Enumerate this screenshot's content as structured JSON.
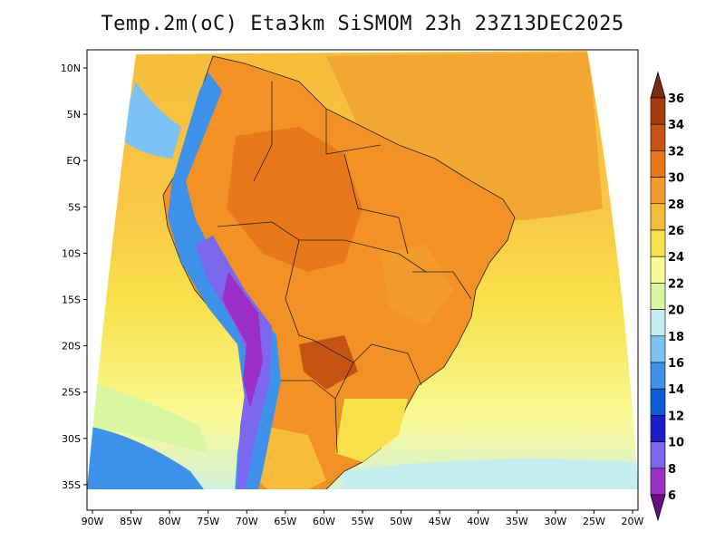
{
  "title": "Temp.2m(oC) Eta3km SiSMOM 23h 23Z13DEC2025",
  "map": {
    "lat_ticks": [
      "10N",
      "5N",
      "EQ",
      "5S",
      "10S",
      "15S",
      "20S",
      "25S",
      "30S",
      "35S"
    ],
    "lon_ticks": [
      "90W",
      "85W",
      "80W",
      "75W",
      "70W",
      "65W",
      "60W",
      "55W",
      "50W",
      "45W",
      "40W",
      "35W",
      "30W",
      "25W",
      "20W"
    ],
    "lat_range": [
      12,
      -38
    ],
    "lon_range": [
      -90,
      -20
    ]
  },
  "colorbar": {
    "labels": [
      "6",
      "8",
      "10",
      "12",
      "14",
      "16",
      "18",
      "20",
      "22",
      "24",
      "26",
      "28",
      "30",
      "32",
      "34",
      "36"
    ],
    "colors": [
      "#6a0d8a",
      "#9a30c8",
      "#7b68ee",
      "#1c1cc8",
      "#0a5fd6",
      "#3f92ea",
      "#7cc3f5",
      "#c4eef0",
      "#d8f7a0",
      "#fafa96",
      "#f8e14a",
      "#f7bd3a",
      "#f39a2c",
      "#e8781a",
      "#c55412",
      "#a63a0d",
      "#7a2c10"
    ]
  }
}
